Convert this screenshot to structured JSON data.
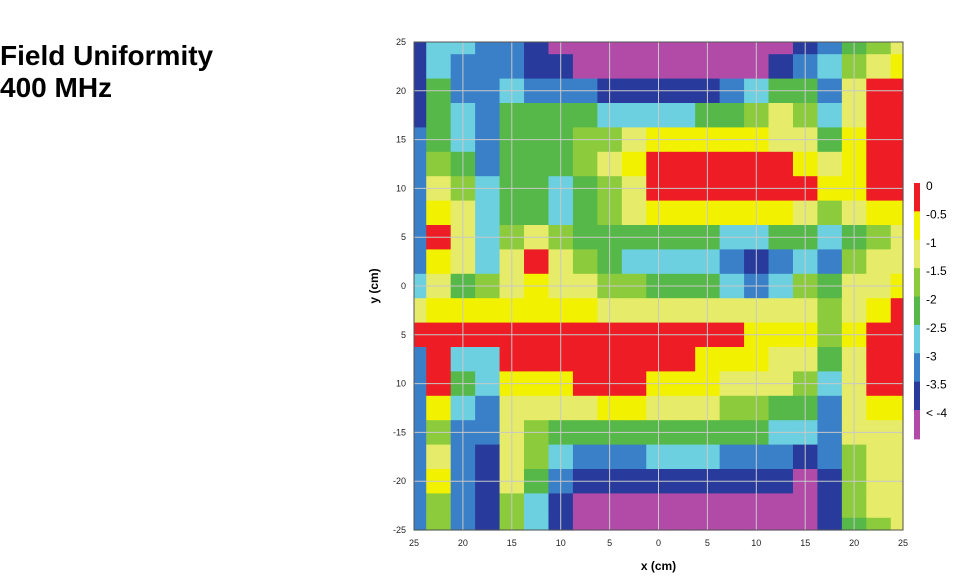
{
  "title": {
    "line1": "Field Uniformity",
    "line2": "400 MHz"
  },
  "chart_data": {
    "type": "heatmap",
    "title": "Field Uniformity 400 MHz",
    "xlabel": "x (cm)",
    "ylabel": "y (cm)",
    "xlim": [
      -25,
      25
    ],
    "ylim": [
      -25,
      25
    ],
    "x_ticks": [
      "25",
      "20",
      "15",
      "10",
      "5",
      "0",
      "5",
      "10",
      "15",
      "20",
      "25"
    ],
    "y_ticks": [
      "25",
      "20",
      "15",
      "10",
      "5",
      "0",
      "5",
      "10",
      "-15",
      "-20",
      "-25"
    ],
    "grid": true,
    "legend_position": "right",
    "levels": [
      {
        "label": "0",
        "color": "#ee1c24"
      },
      {
        "label": "-0.5",
        "color": "#f2f200"
      },
      {
        "label": "-1",
        "color": "#e6ec6a"
      },
      {
        "label": "-1.5",
        "color": "#8ccc3c"
      },
      {
        "label": "-2",
        "color": "#56b848"
      },
      {
        "label": "-2.5",
        "color": "#6cd0e0"
      },
      {
        "label": "-3",
        "color": "#3a80c8"
      },
      {
        "label": "-3.5",
        "color": "#283a9c"
      },
      {
        "label": "< -4",
        "color": "#b24aa8"
      }
    ],
    "grid_x": [
      -25,
      -22.5,
      -20,
      -17.5,
      -15,
      -12.5,
      -10,
      -7.5,
      -5,
      -2.5,
      0,
      2.5,
      5,
      7.5,
      10,
      12.5,
      15,
      17.5,
      20,
      22.5,
      25
    ],
    "grid_y": [
      25,
      22.5,
      20,
      17.5,
      15,
      12.5,
      10,
      7.5,
      5,
      2.5,
      0,
      -2.5,
      -5,
      -7.5,
      -10,
      -12.5,
      -15,
      -17.5,
      -20,
      -22.5,
      -25
    ],
    "values": [
      [
        -3.5,
        -2.5,
        -2.5,
        -3,
        -3,
        -3.5,
        -4,
        -4,
        -4,
        -4,
        -4,
        -4,
        -4,
        -4,
        -4,
        -4,
        -3.5,
        -3,
        -2,
        -1.5,
        -1
      ],
      [
        -3.5,
        -2.5,
        -3,
        -3,
        -3,
        -3.5,
        -3.5,
        -4,
        -4,
        -4,
        -4,
        -4,
        -4,
        -4,
        -4,
        -3.5,
        -3,
        -2.5,
        -1.5,
        -1,
        -0.5
      ],
      [
        -3.5,
        -2,
        -3,
        -3,
        -2.5,
        -3,
        -3,
        -3,
        -3.5,
        -3.5,
        -3.5,
        -3.5,
        -3.5,
        -3,
        -2.5,
        -2,
        -2,
        -3,
        -1,
        0,
        0
      ],
      [
        -3.5,
        -2,
        -2.5,
        -3,
        -2,
        -2,
        -2,
        -2,
        -2.5,
        -2.5,
        -2.5,
        -2.5,
        -2,
        -2,
        -1.5,
        -1,
        -1.5,
        -2.5,
        -1,
        0,
        0
      ],
      [
        -3,
        -2,
        -2.5,
        -3,
        -2,
        -2,
        -2,
        -1.5,
        -1.5,
        -1,
        -0.5,
        -0.5,
        -0.5,
        -0.5,
        -0.5,
        -1,
        -1,
        -2,
        -0.5,
        0,
        0
      ],
      [
        -3,
        -1.5,
        -2,
        -3,
        -2,
        -2,
        -2,
        -1.5,
        -1,
        -0.5,
        0,
        0,
        0,
        0,
        0,
        0,
        -0.5,
        -1,
        -0.5,
        0,
        0
      ],
      [
        -3,
        -1,
        -1.5,
        -2.5,
        -2,
        -2,
        -2.5,
        -2,
        -1.5,
        -1,
        0,
        0,
        0,
        0,
        0,
        0,
        0,
        -0.5,
        -0.5,
        0,
        0
      ],
      [
        -3,
        -0.5,
        -1,
        -2.5,
        -2,
        -2,
        -2.5,
        -2,
        -1.5,
        -1,
        -0.5,
        -0.5,
        -0.5,
        -0.5,
        -0.5,
        -0.5,
        -1,
        -1.5,
        -1,
        -0.5,
        -0.5
      ],
      [
        -3,
        0,
        -1,
        -2.5,
        -1.5,
        -1,
        -1.5,
        -2,
        -2,
        -2,
        -2,
        -2,
        -2,
        -2.5,
        -2.5,
        -2,
        -2,
        -2.5,
        -2,
        -1.5,
        -1
      ],
      [
        -3,
        -0.5,
        -1,
        -2.5,
        -1,
        0,
        -1,
        -1.5,
        -2,
        -2.5,
        -2.5,
        -2.5,
        -2.5,
        -3,
        -3.5,
        -3,
        -2.5,
        -3,
        -1.5,
        -1,
        -1
      ],
      [
        -2.5,
        -1,
        -2,
        -1.5,
        -1,
        -0.5,
        -1,
        -1,
        -1.5,
        -1.5,
        -2,
        -2,
        -2,
        -2.5,
        -3,
        -2.5,
        -1.5,
        -2,
        -1,
        -1,
        -0.5
      ],
      [
        -1,
        -0.5,
        -0.5,
        -0.5,
        -0.5,
        -0.5,
        -0.5,
        -0.5,
        -1,
        -1,
        -1,
        -1,
        -1,
        -1,
        -1,
        -1,
        -1,
        -1.5,
        -1,
        -0.5,
        0
      ],
      [
        0,
        0,
        0,
        0,
        0,
        0,
        0,
        0,
        0,
        0,
        0,
        0,
        0,
        0,
        -0.5,
        -0.5,
        -0.5,
        -1.5,
        -0.5,
        0,
        0
      ],
      [
        -3,
        0,
        -2.5,
        -2.5,
        0,
        0,
        0,
        0,
        0,
        0,
        0,
        0,
        -0.5,
        -0.5,
        -0.5,
        -1,
        -1,
        -2,
        -1,
        0,
        0
      ],
      [
        -3,
        0,
        -2,
        -2.5,
        -0.5,
        -0.5,
        -0.5,
        0,
        0,
        0,
        -0.5,
        -0.5,
        -0.5,
        -1,
        -1,
        -1,
        -1.5,
        -2.5,
        -1,
        0,
        0
      ],
      [
        -3,
        -0.5,
        -2.5,
        -3,
        -1,
        -1,
        -1,
        -1,
        -0.5,
        -0.5,
        -1,
        -1,
        -1,
        -1.5,
        -1.5,
        -2,
        -2,
        -3,
        -1,
        -0.5,
        -0.5
      ],
      [
        -3,
        -1.5,
        -3,
        -3,
        -1,
        -1.5,
        -2,
        -2,
        -2,
        -2,
        -2,
        -2,
        -2,
        -2,
        -2,
        -2.5,
        -2.5,
        -3,
        -1,
        -1,
        -1
      ],
      [
        -3,
        -1,
        -3,
        -3.5,
        -1,
        -1.5,
        -2.5,
        -3,
        -3,
        -3,
        -2.5,
        -2.5,
        -2.5,
        -3,
        -3,
        -3,
        -3.5,
        -3,
        -1.5,
        -1,
        -1
      ],
      [
        -3,
        -0.5,
        -3,
        -3.5,
        -1,
        -2,
        -3,
        -3.5,
        -3.5,
        -3.5,
        -3.5,
        -3.5,
        -3.5,
        -3.5,
        -3.5,
        -3.5,
        -4,
        -3.5,
        -1.5,
        -1,
        -1
      ],
      [
        -3,
        -1.5,
        -3,
        -3.5,
        -1.5,
        -2.5,
        -3.5,
        -4,
        -4,
        -4,
        -4,
        -4,
        -4,
        -4,
        -4,
        -4,
        -4,
        -3.5,
        -1.5,
        -1,
        -1
      ],
      [
        -3,
        -1.5,
        -3,
        -3.5,
        -1.5,
        -2.5,
        -3.5,
        -4,
        -4,
        -4,
        -4,
        -4,
        -4,
        -4,
        -4,
        -4,
        -4,
        -3.5,
        -2,
        -1.5,
        -1
      ]
    ]
  }
}
